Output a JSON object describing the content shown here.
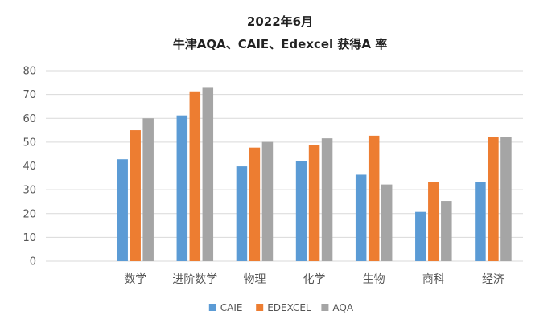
{
  "chart_data": {
    "type": "bar",
    "title": "2022年6月",
    "subtitle": "牛津AQA、CAIE、Edexcel 获得A 率",
    "categories": [
      "",
      "数学",
      "进阶数学",
      "物理",
      "化学",
      "生物",
      "商科",
      "经济"
    ],
    "series": [
      {
        "name": "CAIE",
        "color": "#5B9BD5",
        "values": [
          null,
          42.8,
          61.2,
          39.8,
          41.9,
          36.3,
          20.7,
          33.2
        ]
      },
      {
        "name": "EDEXCEL",
        "color": "#ED7D31",
        "values": [
          null,
          55.0,
          71.3,
          47.7,
          48.7,
          52.7,
          33.2,
          52.0
        ]
      },
      {
        "name": "AQA",
        "color": "#A5A5A5",
        "values": [
          null,
          60.0,
          73.1,
          50.1,
          51.6,
          32.2,
          25.3,
          52.0
        ]
      }
    ],
    "yticks": [
      0,
      10,
      20,
      30,
      40,
      50,
      60,
      70,
      80
    ],
    "ylim": [
      0,
      80
    ],
    "grid": true,
    "legend_position": "bottom"
  }
}
